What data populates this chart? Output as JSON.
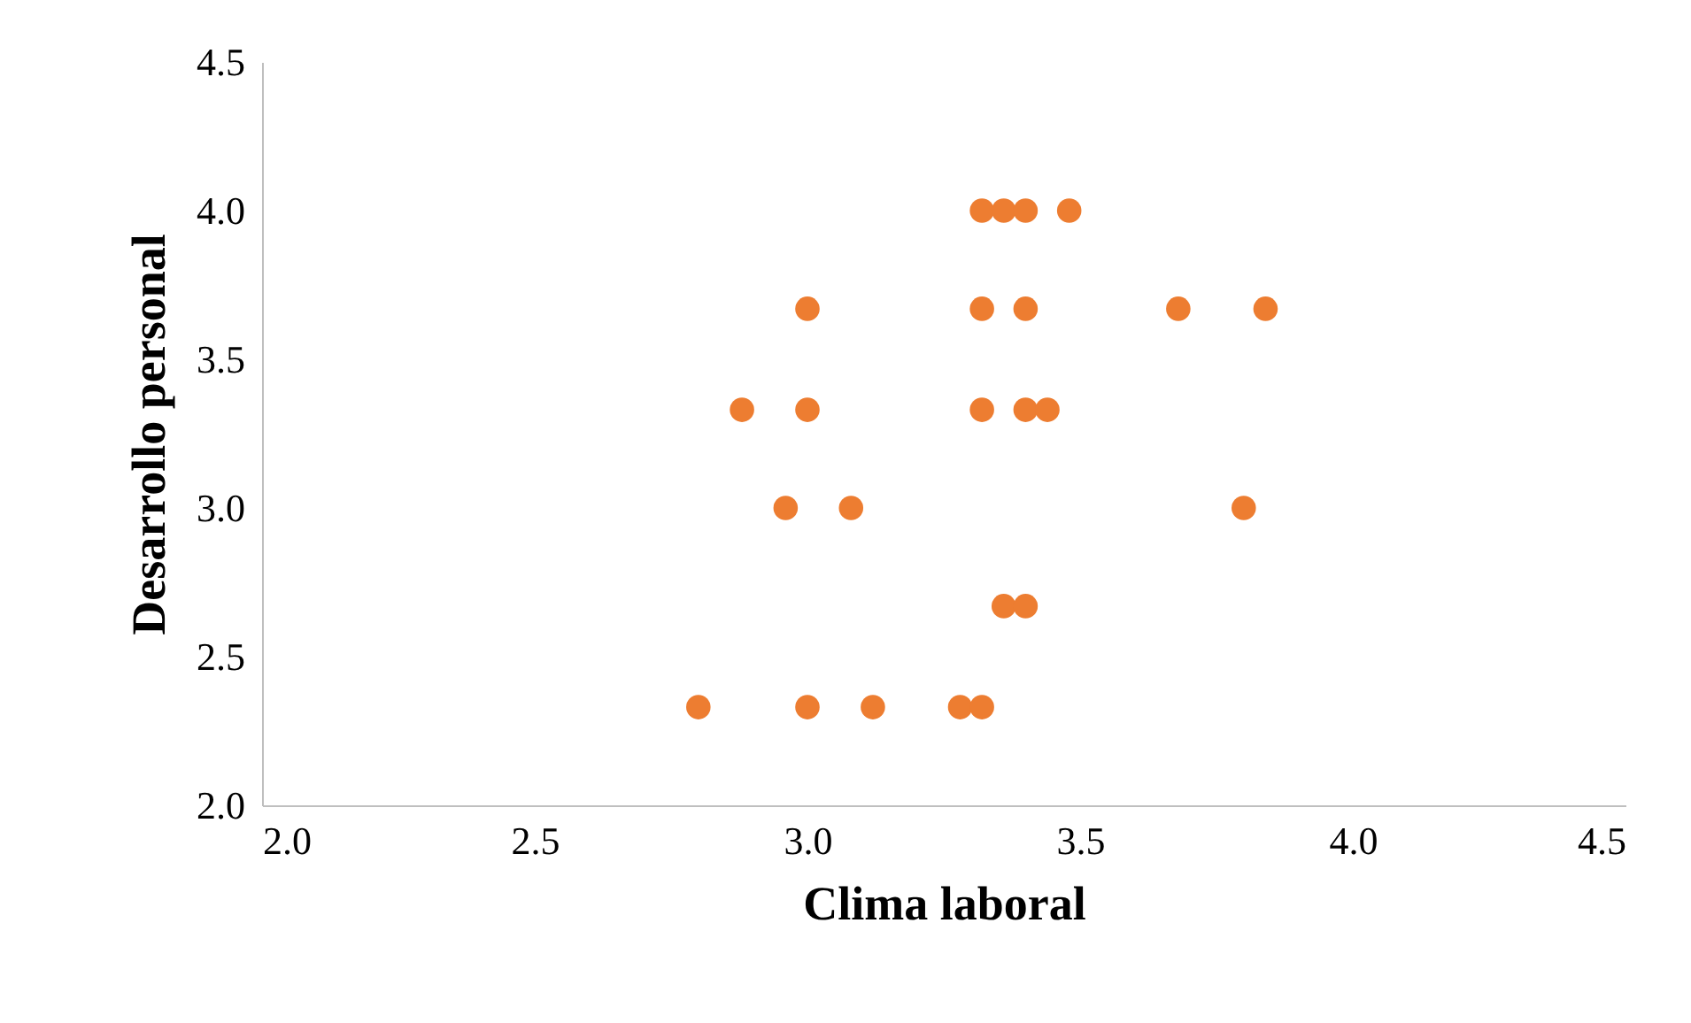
{
  "chart_data": {
    "type": "scatter",
    "xlabel": "Clima laboral",
    "ylabel": "Desarrollo personal",
    "x": [
      3.32,
      3.36,
      3.4,
      3.48,
      3.0,
      3.32,
      3.4,
      3.68,
      3.84,
      2.88,
      3.0,
      3.32,
      3.4,
      3.44,
      2.96,
      3.08,
      3.8,
      3.36,
      3.4,
      2.8,
      3.0,
      3.12,
      3.28,
      3.32
    ],
    "series": [
      {
        "color": "#ed7d31",
        "values": [
          4.0,
          4.0,
          4.0,
          4.0,
          3.67,
          3.67,
          3.67,
          3.67,
          3.67,
          3.33,
          3.33,
          3.33,
          3.33,
          3.33,
          3.0,
          3.0,
          3.0,
          2.67,
          2.67,
          2.33,
          2.33,
          2.33,
          2.33,
          2.33
        ]
      }
    ],
    "xlim": [
      2.0,
      4.5
    ],
    "xticks": [
      {
        "value": 2.0,
        "label": "2.0"
      },
      {
        "value": 2.5,
        "label": "2.5"
      },
      {
        "value": 3.0,
        "label": "3.0"
      },
      {
        "value": 3.5,
        "label": "3.5"
      },
      {
        "value": 4.0,
        "label": "4.0"
      },
      {
        "value": 4.5,
        "label": "4.5"
      }
    ],
    "ylim": [
      2.0,
      4.5
    ],
    "yticks": [
      {
        "value": 2.0,
        "label": "2.0"
      },
      {
        "value": 2.5,
        "label": "2.5"
      },
      {
        "value": 3.0,
        "label": "3.0"
      },
      {
        "value": 3.5,
        "label": "3.5"
      },
      {
        "value": 4.0,
        "label": "4.0"
      },
      {
        "value": 4.5,
        "label": "4.5"
      }
    ],
    "marker": "circle"
  }
}
